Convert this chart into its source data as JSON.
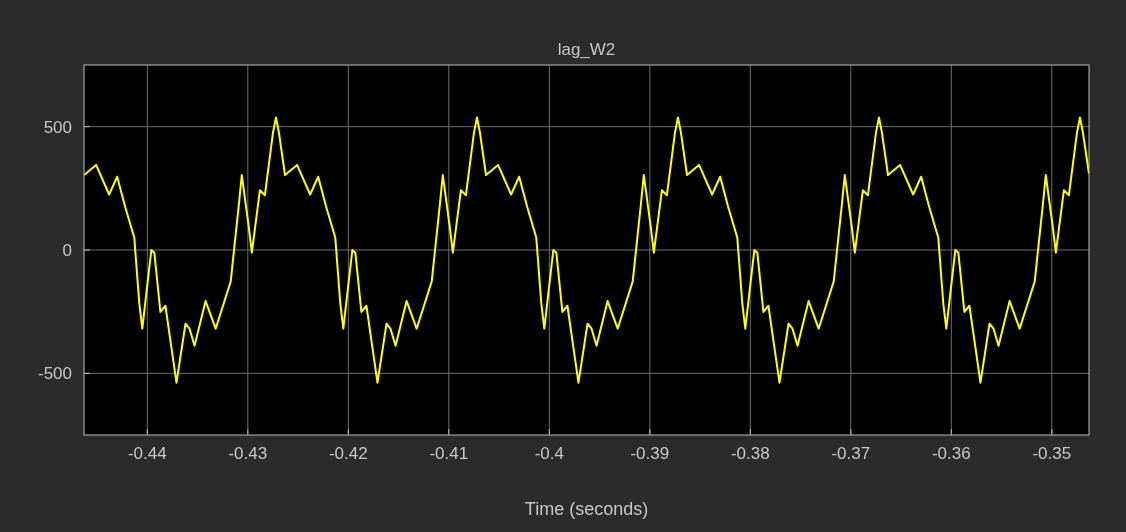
{
  "chart_data": {
    "type": "line",
    "title": "lag_W2",
    "xlabel": "Time (seconds)",
    "xlim": [
      -0.4463,
      -0.3463
    ],
    "xticks": [
      -0.44,
      -0.43,
      -0.42,
      -0.41,
      -0.4,
      -0.39,
      -0.38,
      -0.37,
      -0.36,
      -0.35
    ],
    "ylim": [
      -750,
      750
    ],
    "yticks": [
      -500,
      0,
      500
    ],
    "grid": true,
    "series": [
      {
        "color": "#ffff00",
        "x": [
          -0.4463,
          -0.4451,
          -0.4438,
          -0.443,
          -0.4422,
          -0.4413,
          -0.4408,
          -0.4405,
          -0.4396,
          -0.4393,
          -0.4387,
          -0.4382,
          -0.4371,
          -0.4362,
          -0.4358,
          -0.4353,
          -0.4342,
          -0.4332,
          -0.4317,
          -0.4309,
          -0.4306,
          -0.4299,
          -0.4296,
          -0.4288,
          -0.4283,
          -0.4275,
          -0.4272,
          -0.4269,
          -0.4263,
          -0.4251,
          -0.4238,
          -0.423,
          -0.4222,
          -0.4213,
          -0.4208,
          -0.4205,
          -0.4196,
          -0.4193,
          -0.4187,
          -0.4182,
          -0.4171,
          -0.4162,
          -0.4158,
          -0.4153,
          -0.4142,
          -0.4132,
          -0.4117,
          -0.4109,
          -0.4106,
          -0.4099,
          -0.4096,
          -0.4088,
          -0.4083,
          -0.4075,
          -0.4072,
          -0.4069,
          -0.4063,
          -0.4051,
          -0.4038,
          -0.403,
          -0.4022,
          -0.4013,
          -0.4008,
          -0.4005,
          -0.3996,
          -0.3993,
          -0.3987,
          -0.3982,
          -0.3971,
          -0.3962,
          -0.3958,
          -0.3953,
          -0.3942,
          -0.3932,
          -0.3917,
          -0.3909,
          -0.3906,
          -0.3899,
          -0.3896,
          -0.3888,
          -0.3883,
          -0.3875,
          -0.3872,
          -0.3869,
          -0.3863,
          -0.3851,
          -0.3838,
          -0.383,
          -0.3822,
          -0.3813,
          -0.3808,
          -0.3805,
          -0.3796,
          -0.3793,
          -0.3787,
          -0.3782,
          -0.3771,
          -0.3762,
          -0.3758,
          -0.3753,
          -0.3742,
          -0.3732,
          -0.3717,
          -0.3709,
          -0.3706,
          -0.3699,
          -0.3696,
          -0.3688,
          -0.3683,
          -0.3675,
          -0.3672,
          -0.3669,
          -0.3663,
          -0.3651,
          -0.3638,
          -0.363,
          -0.3622,
          -0.3613,
          -0.3608,
          -0.3605,
          -0.3596,
          -0.3593,
          -0.3587,
          -0.3582,
          -0.3571,
          -0.3562,
          -0.3558,
          -0.3553,
          -0.3542,
          -0.3532,
          -0.3517,
          -0.3509,
          -0.3506,
          -0.3499,
          -0.3496,
          -0.3488,
          -0.3483,
          -0.3475,
          -0.3472,
          -0.3469,
          -0.3463
        ],
        "values": [
          304,
          345,
          225,
          297,
          174,
          51,
          -216,
          -319,
          0,
          -11,
          -251,
          -226,
          -538,
          -299,
          -319,
          -388,
          -207,
          -319,
          -127,
          181,
          304,
          92,
          -11,
          242,
          222,
          475,
          537,
          475,
          304,
          345,
          225,
          297,
          174,
          51,
          -216,
          -319,
          0,
          -11,
          -251,
          -226,
          -538,
          -299,
          -319,
          -388,
          -207,
          -319,
          -127,
          181,
          304,
          92,
          -11,
          242,
          222,
          475,
          537,
          475,
          304,
          345,
          225,
          297,
          174,
          51,
          -216,
          -319,
          0,
          -11,
          -251,
          -226,
          -538,
          -299,
          -319,
          -388,
          -207,
          -319,
          -127,
          181,
          304,
          92,
          -11,
          242,
          222,
          475,
          537,
          475,
          304,
          345,
          225,
          297,
          174,
          51,
          -216,
          -319,
          0,
          -11,
          -251,
          -226,
          -538,
          -299,
          -319,
          -388,
          -207,
          -319,
          -127,
          181,
          304,
          92,
          -11,
          242,
          222,
          475,
          537,
          475,
          304,
          345,
          225,
          297,
          174,
          51,
          -216,
          -319,
          0,
          -11,
          -251,
          -226,
          -538,
          -299,
          -319,
          -388,
          -207,
          -319,
          -127,
          181,
          304,
          92,
          -11,
          242,
          222,
          475,
          537,
          475,
          310
        ]
      }
    ]
  }
}
